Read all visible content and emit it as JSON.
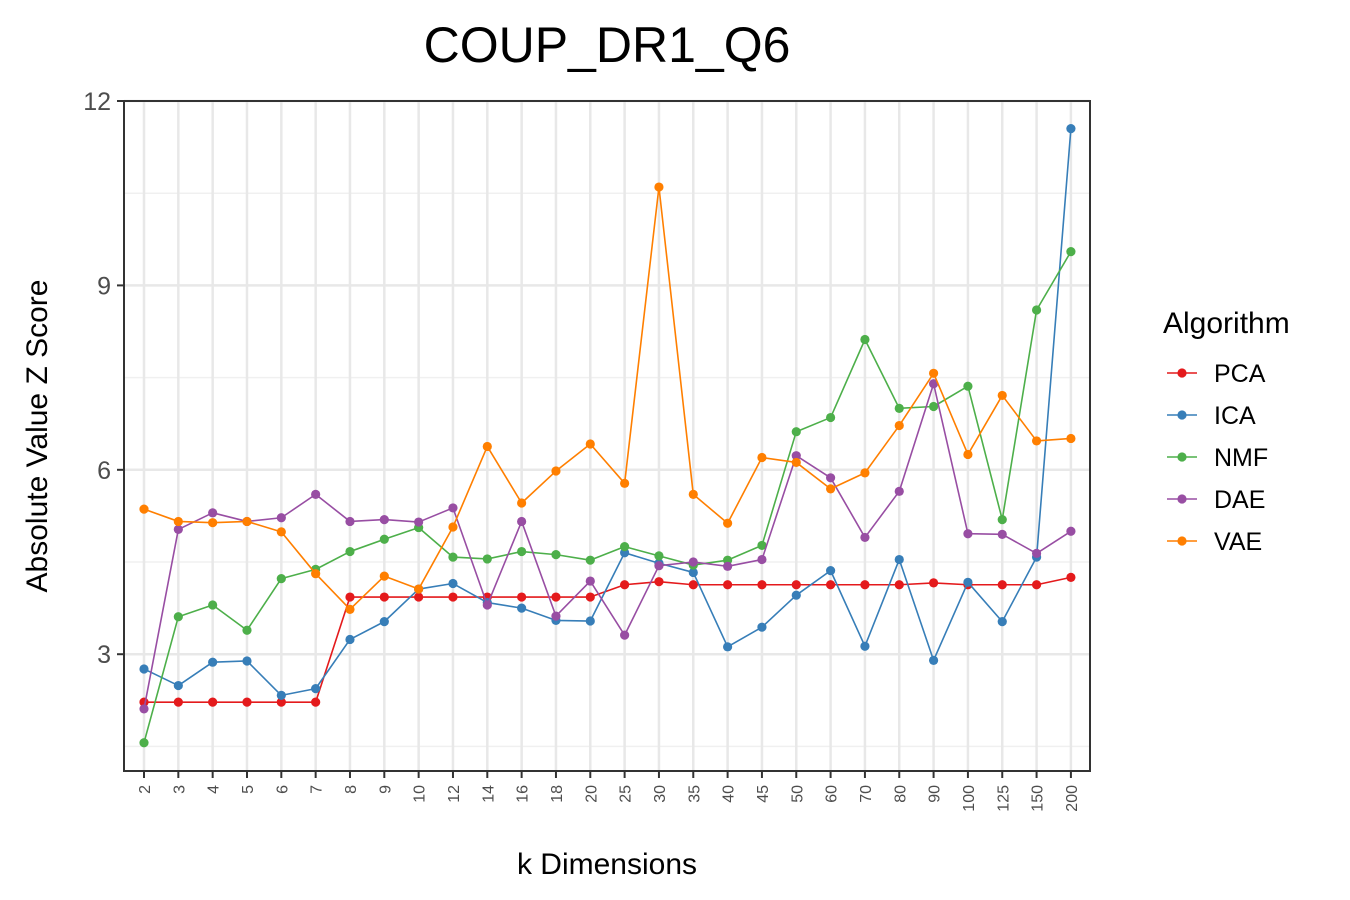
{
  "chart_data": {
    "type": "line",
    "title": "COUP_DR1_Q6",
    "xlabel": "k Dimensions",
    "ylabel": "Absolute Value Z Score",
    "categories": [
      "2",
      "3",
      "4",
      "5",
      "6",
      "7",
      "8",
      "9",
      "10",
      "12",
      "14",
      "16",
      "18",
      "20",
      "25",
      "30",
      "35",
      "40",
      "45",
      "50",
      "60",
      "70",
      "80",
      "90",
      "100",
      "125",
      "150",
      "200"
    ],
    "yticks": [
      "3",
      "6",
      "9",
      "12"
    ],
    "ylim": [
      1.1,
      12.0
    ],
    "grid": true,
    "legend": {
      "title": "Algorithm",
      "position": "right"
    },
    "series": [
      {
        "name": "PCA",
        "color": "#e41a1c",
        "values": [
          2.22,
          2.22,
          2.22,
          2.22,
          2.22,
          2.22,
          3.93,
          3.93,
          3.93,
          3.93,
          3.93,
          3.93,
          3.93,
          3.93,
          4.13,
          4.18,
          4.13,
          4.13,
          4.13,
          4.13,
          4.13,
          4.13,
          4.13,
          4.16,
          4.13,
          4.13,
          4.13,
          4.25
        ]
      },
      {
        "name": "ICA",
        "color": "#377eb8",
        "values": [
          2.76,
          2.49,
          2.87,
          2.89,
          2.33,
          2.44,
          3.24,
          3.53,
          4.06,
          4.15,
          3.84,
          3.75,
          3.55,
          3.54,
          4.65,
          4.48,
          4.33,
          3.12,
          3.44,
          3.96,
          4.36,
          3.13,
          4.54,
          2.9,
          4.17,
          3.53,
          4.58,
          11.55
        ]
      },
      {
        "name": "NMF",
        "color": "#4daf4a",
        "values": [
          1.56,
          3.61,
          3.8,
          3.39,
          4.23,
          4.38,
          4.67,
          4.87,
          5.06,
          4.58,
          4.55,
          4.67,
          4.62,
          4.53,
          4.75,
          4.6,
          4.45,
          4.53,
          4.77,
          6.62,
          6.85,
          8.12,
          7.0,
          7.03,
          7.36,
          5.19,
          8.6,
          9.55
        ]
      },
      {
        "name": "DAE",
        "color": "#984ea3",
        "values": [
          2.11,
          5.03,
          5.3,
          5.16,
          5.22,
          5.6,
          5.16,
          5.19,
          5.15,
          5.38,
          3.8,
          5.16,
          3.62,
          4.19,
          3.31,
          4.44,
          4.5,
          4.43,
          4.54,
          6.23,
          5.87,
          4.9,
          5.65,
          7.4,
          4.96,
          4.95,
          4.64,
          5.0
        ]
      },
      {
        "name": "VAE",
        "color": "#ff7f00",
        "values": [
          5.36,
          5.16,
          5.14,
          5.16,
          4.99,
          4.31,
          3.73,
          4.27,
          4.06,
          5.07,
          6.38,
          5.46,
          5.98,
          6.42,
          5.78,
          10.6,
          5.6,
          5.13,
          6.2,
          6.12,
          5.69,
          5.95,
          6.72,
          7.57,
          6.25,
          7.21,
          6.47,
          6.51
        ]
      }
    ]
  }
}
